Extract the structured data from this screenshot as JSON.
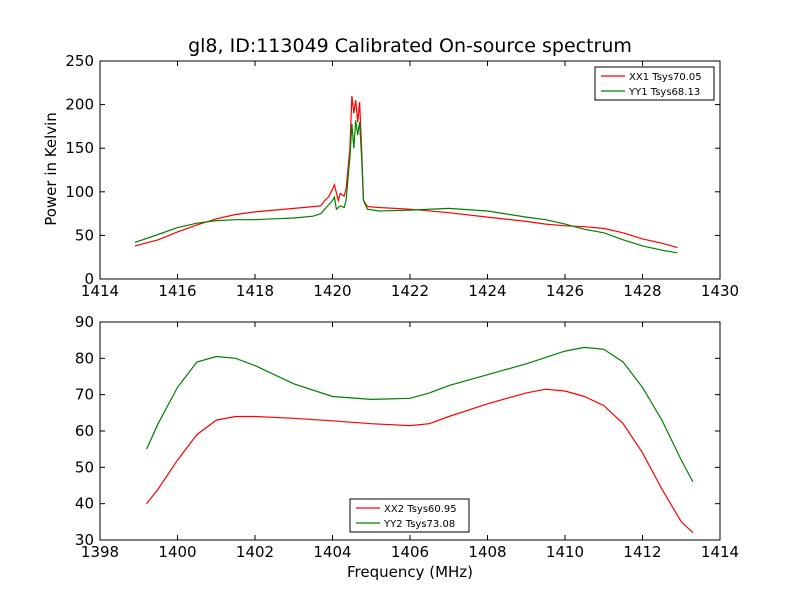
{
  "chart_data": [
    {
      "type": "line",
      "title": "gl8, ID:113049 Calibrated On-source spectrum",
      "xlabel": "",
      "ylabel": "Power in Kelvin",
      "xlim": [
        1414,
        1430
      ],
      "ylim": [
        0,
        250
      ],
      "xticks": [
        "1414",
        "1416",
        "1418",
        "1420",
        "1422",
        "1424",
        "1426",
        "1428",
        "1430"
      ],
      "yticks": [
        "0",
        "50",
        "100",
        "150",
        "200",
        "250"
      ],
      "legend_position": "top-right",
      "grid": false,
      "series": [
        {
          "name": "XX1 Tsys70.05",
          "color": "#ff0000",
          "points": [
            [
              1414.9,
              38
            ],
            [
              1415.5,
              45
            ],
            [
              1416,
              54
            ],
            [
              1416.5,
              62
            ],
            [
              1417,
              69
            ],
            [
              1417.5,
              74
            ],
            [
              1418,
              77
            ],
            [
              1418.5,
              79
            ],
            [
              1419,
              81
            ],
            [
              1419.5,
              83
            ],
            [
              1419.7,
              84
            ],
            [
              1419.8,
              90
            ],
            [
              1419.9,
              94
            ],
            [
              1420.0,
              103
            ],
            [
              1420.05,
              108
            ],
            [
              1420.15,
              90
            ],
            [
              1420.2,
              98
            ],
            [
              1420.3,
              95
            ],
            [
              1420.35,
              103
            ],
            [
              1420.45,
              150
            ],
            [
              1420.5,
              210
            ],
            [
              1420.55,
              190
            ],
            [
              1420.6,
              205
            ],
            [
              1420.65,
              180
            ],
            [
              1420.7,
              203
            ],
            [
              1420.75,
              150
            ],
            [
              1420.8,
              90
            ],
            [
              1420.9,
              83
            ],
            [
              1421.2,
              82
            ],
            [
              1422,
              80
            ],
            [
              1423,
              76
            ],
            [
              1424,
              71
            ],
            [
              1425,
              66
            ],
            [
              1425.5,
              63
            ],
            [
              1426,
              61
            ],
            [
              1426.5,
              60
            ],
            [
              1427,
              58
            ],
            [
              1427.5,
              53
            ],
            [
              1428,
              46
            ],
            [
              1428.5,
              41
            ],
            [
              1428.9,
              36
            ]
          ]
        },
        {
          "name": "YY1 Tsys68.13",
          "color": "#008000",
          "points": [
            [
              1414.9,
              42
            ],
            [
              1415.5,
              51
            ],
            [
              1416,
              59
            ],
            [
              1416.5,
              64
            ],
            [
              1417,
              67
            ],
            [
              1417.5,
              68
            ],
            [
              1418,
              68
            ],
            [
              1418.5,
              69
            ],
            [
              1419,
              70
            ],
            [
              1419.5,
              72
            ],
            [
              1419.7,
              75
            ],
            [
              1419.8,
              80
            ],
            [
              1419.9,
              85
            ],
            [
              1420.0,
              90
            ],
            [
              1420.05,
              94
            ],
            [
              1420.1,
              80
            ],
            [
              1420.2,
              84
            ],
            [
              1420.3,
              82
            ],
            [
              1420.35,
              90
            ],
            [
              1420.45,
              140
            ],
            [
              1420.5,
              178
            ],
            [
              1420.55,
              150
            ],
            [
              1420.6,
              182
            ],
            [
              1420.65,
              165
            ],
            [
              1420.7,
              180
            ],
            [
              1420.75,
              140
            ],
            [
              1420.8,
              90
            ],
            [
              1420.9,
              80
            ],
            [
              1421.2,
              78
            ],
            [
              1422,
              79
            ],
            [
              1423,
              81
            ],
            [
              1424,
              78
            ],
            [
              1425,
              71
            ],
            [
              1425.5,
              68
            ],
            [
              1426,
              63
            ],
            [
              1426.5,
              57
            ],
            [
              1427,
              53
            ],
            [
              1427.5,
              45
            ],
            [
              1428,
              38
            ],
            [
              1428.5,
              33
            ],
            [
              1428.9,
              30
            ]
          ]
        }
      ]
    },
    {
      "type": "line",
      "title": "",
      "xlabel": "Frequency (MHz)",
      "ylabel": "",
      "xlim": [
        1398,
        1414
      ],
      "ylim": [
        30,
        90
      ],
      "xticks": [
        "1398",
        "1400",
        "1402",
        "1404",
        "1406",
        "1408",
        "1410",
        "1412",
        "1414"
      ],
      "yticks": [
        "30",
        "40",
        "50",
        "60",
        "70",
        "80",
        "90"
      ],
      "legend_position": "bottom-center",
      "grid": false,
      "series": [
        {
          "name": "XX2 Tsys60.95",
          "color": "#ff0000",
          "points": [
            [
              1399.2,
              40
            ],
            [
              1399.5,
              44
            ],
            [
              1400,
              52
            ],
            [
              1400.5,
              59
            ],
            [
              1401,
              63
            ],
            [
              1401.5,
              64
            ],
            [
              1402,
              64
            ],
            [
              1403,
              63.5
            ],
            [
              1404,
              62.8
            ],
            [
              1405,
              62
            ],
            [
              1406,
              61.5
            ],
            [
              1406.5,
              62
            ],
            [
              1407,
              64
            ],
            [
              1408,
              67.5
            ],
            [
              1409,
              70.5
            ],
            [
              1409.5,
              71.5
            ],
            [
              1410,
              71
            ],
            [
              1410.5,
              69.5
            ],
            [
              1411,
              67
            ],
            [
              1411.5,
              62
            ],
            [
              1412,
              54
            ],
            [
              1412.5,
              44
            ],
            [
              1413,
              35
            ],
            [
              1413.3,
              32
            ]
          ]
        },
        {
          "name": "YY2 Tsys73.08",
          "color": "#008000",
          "points": [
            [
              1399.2,
              55
            ],
            [
              1399.5,
              62
            ],
            [
              1400,
              72
            ],
            [
              1400.5,
              79
            ],
            [
              1401,
              80.5
            ],
            [
              1401.5,
              80
            ],
            [
              1402,
              78
            ],
            [
              1403,
              73
            ],
            [
              1404,
              69.5
            ],
            [
              1405,
              68.7
            ],
            [
              1406,
              69
            ],
            [
              1406.5,
              70.5
            ],
            [
              1407,
              72.5
            ],
            [
              1408,
              75.5
            ],
            [
              1409,
              78.5
            ],
            [
              1410,
              82
            ],
            [
              1410.5,
              83
            ],
            [
              1411,
              82.5
            ],
            [
              1411.5,
              79
            ],
            [
              1412,
              72
            ],
            [
              1412.5,
              63
            ],
            [
              1413,
              52
            ],
            [
              1413.3,
              46
            ]
          ]
        }
      ]
    }
  ]
}
